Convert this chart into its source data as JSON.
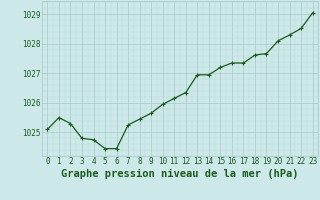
{
  "x": [
    0,
    1,
    2,
    3,
    4,
    5,
    6,
    7,
    8,
    9,
    10,
    11,
    12,
    13,
    14,
    15,
    16,
    17,
    18,
    19,
    20,
    21,
    22,
    23
  ],
  "y": [
    1025.1,
    1025.5,
    1025.3,
    1024.8,
    1024.75,
    1024.45,
    1024.45,
    1025.25,
    1025.45,
    1025.65,
    1025.95,
    1026.15,
    1026.35,
    1026.95,
    1026.95,
    1027.2,
    1027.35,
    1027.35,
    1027.62,
    1027.67,
    1028.1,
    1028.3,
    1028.52,
    1029.05
  ],
  "line_color": "#1a5c1a",
  "marker_color": "#1a5c1a",
  "bg_color": "#cce8e8",
  "grid_color_major": "#aac8c8",
  "grid_color_minor": "#bbdada",
  "xlabel": "Graphe pression niveau de la mer (hPa)",
  "ylim_min": 1024.2,
  "ylim_max": 1029.45,
  "yticks": [
    1025,
    1026,
    1027,
    1028,
    1029
  ],
  "xticks": [
    0,
    1,
    2,
    3,
    4,
    5,
    6,
    7,
    8,
    9,
    10,
    11,
    12,
    13,
    14,
    15,
    16,
    17,
    18,
    19,
    20,
    21,
    22,
    23
  ],
  "label_color": "#1a5c1a",
  "xlabel_fontsize": 7.5,
  "tick_fontsize": 5.5,
  "line_width": 0.9,
  "marker_size": 2.5
}
